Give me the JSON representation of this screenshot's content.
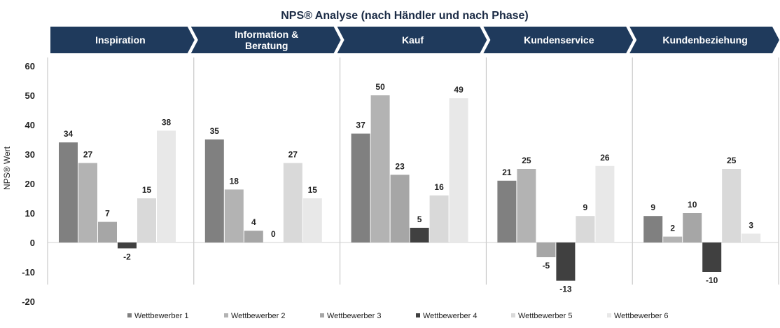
{
  "chart_data": {
    "type": "bar",
    "title": "NPS® Analyse (nach Händler und nach Phase)",
    "ylabel": "NPS® Wert",
    "ylim": [
      -20,
      60
    ],
    "yticks": [
      60,
      50,
      40,
      30,
      20,
      10,
      0,
      -10,
      -20
    ],
    "categories": [
      "Inspiration",
      "Information & Beratung",
      "Kauf",
      "Kundenservice",
      "Kundenbeziehung"
    ],
    "category_lines": [
      [
        "Inspiration"
      ],
      [
        "Information &",
        "Beratung"
      ],
      [
        "Kauf"
      ],
      [
        "Kundenservice"
      ],
      [
        "Kundenbeziehung"
      ]
    ],
    "legend_position": "bottom",
    "grid": false,
    "series": [
      {
        "name": "Wettbewerber 1",
        "color": "#808080",
        "values": [
          34,
          35,
          37,
          21,
          9
        ]
      },
      {
        "name": "Wettbewerber 2",
        "color": "#b3b3b3",
        "values": [
          27,
          18,
          50,
          25,
          2
        ]
      },
      {
        "name": "Wettbewerber 3",
        "color": "#a6a6a6",
        "values": [
          7,
          4,
          23,
          -5,
          10
        ]
      },
      {
        "name": "Wettbewerber 4",
        "color": "#404040",
        "values": [
          -2,
          0,
          5,
          -13,
          -10
        ]
      },
      {
        "name": "Wettbewerber 5",
        "color": "#d9d9d9",
        "values": [
          15,
          27,
          16,
          9,
          25
        ]
      },
      {
        "name": "Wettbewerber 6",
        "color": "#e8e8e8",
        "values": [
          38,
          15,
          49,
          26,
          3
        ]
      }
    ],
    "colors": {
      "header": "#1f3a5c",
      "separator": "#bfbfbf",
      "axis": "#d0d0d0"
    }
  }
}
